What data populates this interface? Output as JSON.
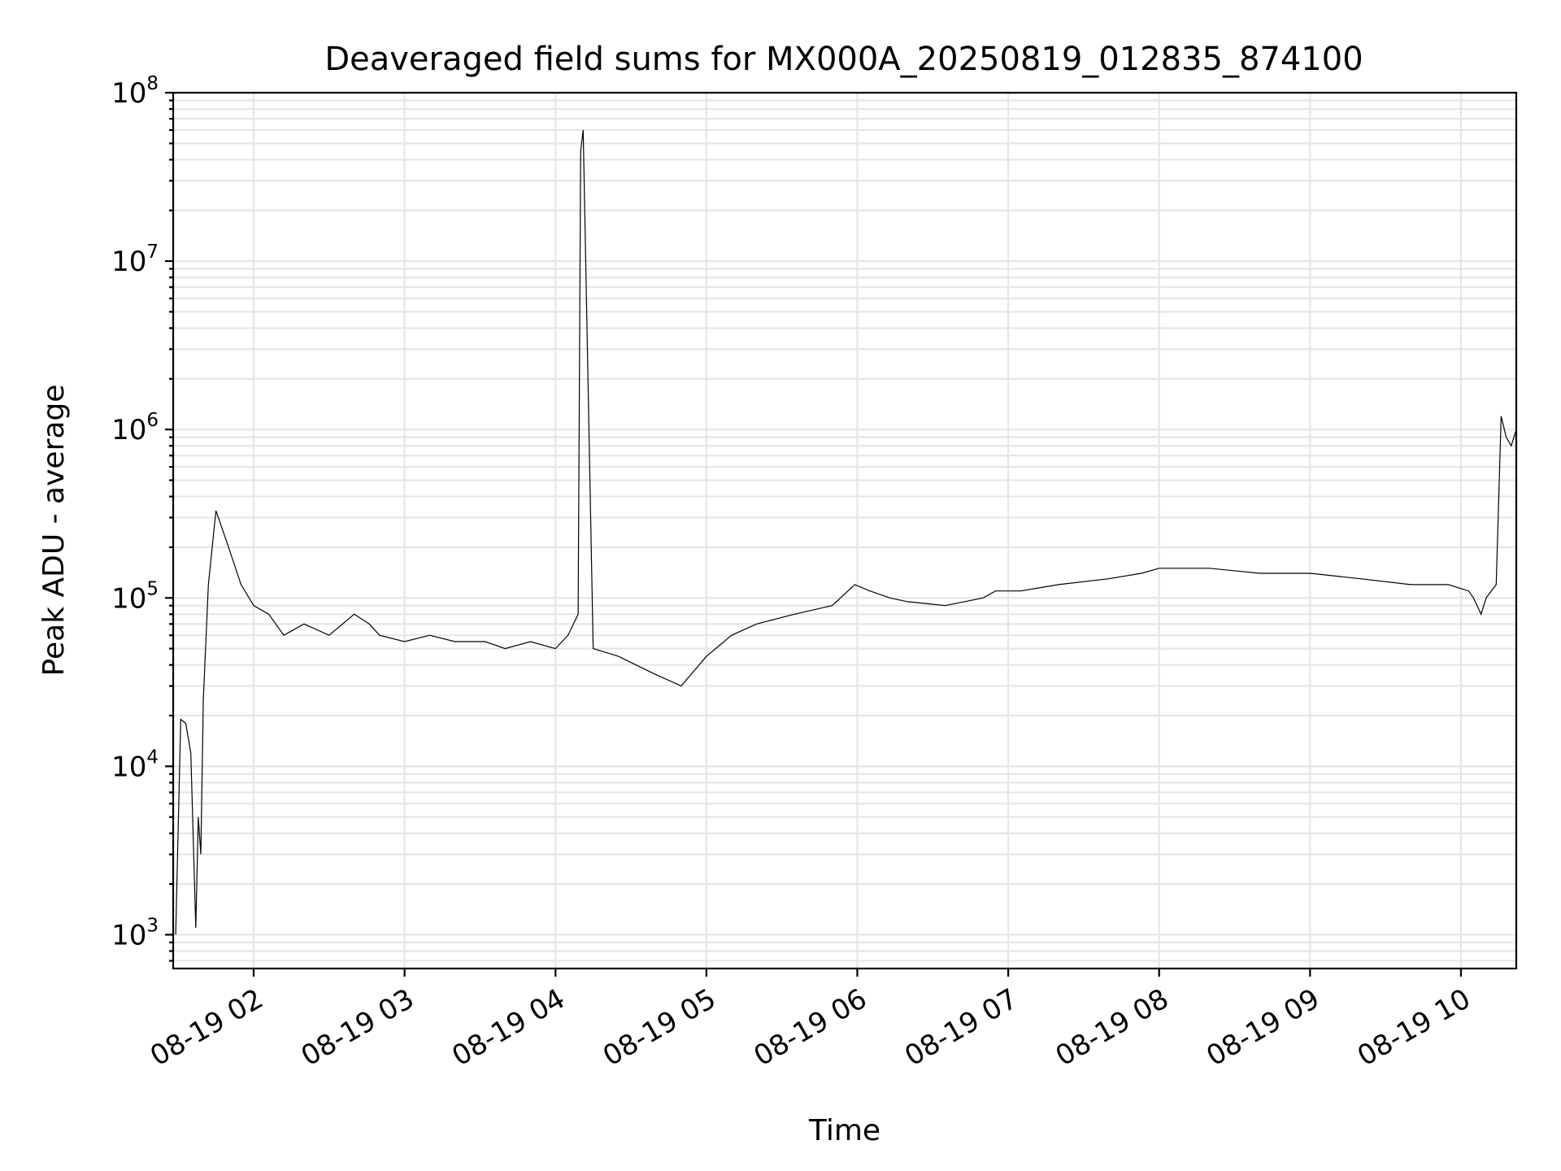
{
  "chart_data": {
    "type": "line",
    "title": "Deaveraged field sums for MX000A_20250819_012835_874100",
    "xlabel": "Time",
    "ylabel": "Peak ADU - average",
    "yscale": "log",
    "ylim": [
      630,
      100000000
    ],
    "xlim": [
      "2025-08-19 01:28",
      "2025-08-19 10:22"
    ],
    "grid": true,
    "x_ticks": [
      "08-19 02",
      "08-19 03",
      "08-19 04",
      "08-19 05",
      "08-19 06",
      "08-19 07",
      "08-19 08",
      "08-19 09",
      "08-19 10"
    ],
    "y_ticks": [
      {
        "base": "10",
        "exp": "3"
      },
      {
        "base": "10",
        "exp": "4"
      },
      {
        "base": "10",
        "exp": "5"
      },
      {
        "base": "10",
        "exp": "6"
      },
      {
        "base": "10",
        "exp": "7"
      },
      {
        "base": "10",
        "exp": "8"
      }
    ],
    "series_color": "#000000",
    "series": [
      {
        "x": [
          "2025-08-19 01:29",
          "2025-08-19 01:31",
          "2025-08-19 01:33",
          "2025-08-19 01:35",
          "2025-08-19 01:37",
          "2025-08-19 01:38",
          "2025-08-19 01:39",
          "2025-08-19 01:40",
          "2025-08-19 01:42",
          "2025-08-19 01:45",
          "2025-08-19 01:50",
          "2025-08-19 01:55",
          "2025-08-19 02:00",
          "2025-08-19 02:06",
          "2025-08-19 02:12",
          "2025-08-19 02:20",
          "2025-08-19 02:30",
          "2025-08-19 02:40",
          "2025-08-19 02:46",
          "2025-08-19 02:50",
          "2025-08-19 03:00",
          "2025-08-19 03:10",
          "2025-08-19 03:20",
          "2025-08-19 03:32",
          "2025-08-19 03:40",
          "2025-08-19 03:50",
          "2025-08-19 04:00",
          "2025-08-19 04:05",
          "2025-08-19 04:09",
          "2025-08-19 04:10",
          "2025-08-19 04:11",
          "2025-08-19 04:15",
          "2025-08-19 04:25",
          "2025-08-19 04:40",
          "2025-08-19 04:50",
          "2025-08-19 05:00",
          "2025-08-19 05:10",
          "2025-08-19 05:20",
          "2025-08-19 05:35",
          "2025-08-19 05:50",
          "2025-08-19 05:59",
          "2025-08-19 06:05",
          "2025-08-19 06:13",
          "2025-08-19 06:20",
          "2025-08-19 06:35",
          "2025-08-19 06:50",
          "2025-08-19 06:55",
          "2025-08-19 07:05",
          "2025-08-19 07:20",
          "2025-08-19 07:40",
          "2025-08-19 07:53",
          "2025-08-19 08:00",
          "2025-08-19 08:20",
          "2025-08-19 08:40",
          "2025-08-19 09:00",
          "2025-08-19 09:20",
          "2025-08-19 09:40",
          "2025-08-19 09:55",
          "2025-08-19 10:03",
          "2025-08-19 10:05",
          "2025-08-19 10:08",
          "2025-08-19 10:10",
          "2025-08-19 10:14",
          "2025-08-19 10:16",
          "2025-08-19 10:18",
          "2025-08-19 10:20",
          "2025-08-19 10:22"
        ],
        "values": [
          1000,
          19000,
          18000,
          12000,
          1100,
          5000,
          3000,
          25000,
          120000,
          330000,
          200000,
          120000,
          90000,
          80000,
          60000,
          70000,
          60000,
          80000,
          70000,
          60000,
          55000,
          60000,
          55000,
          55000,
          50000,
          55000,
          50000,
          60000,
          80000,
          45000000,
          60000000,
          50000,
          45000,
          35000,
          30000,
          45000,
          60000,
          70000,
          80000,
          90000,
          120000,
          110000,
          100000,
          95000,
          90000,
          100000,
          110000,
          110000,
          120000,
          130000,
          140000,
          150000,
          150000,
          140000,
          140000,
          130000,
          120000,
          120000,
          110000,
          100000,
          80000,
          100000,
          120000,
          1200000,
          900000,
          800000,
          1000000
        ]
      }
    ]
  }
}
